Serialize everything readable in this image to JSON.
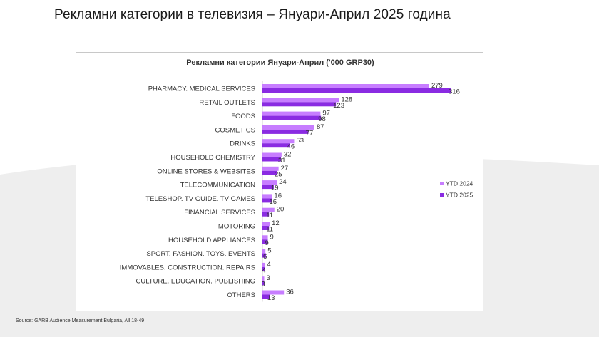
{
  "slide": {
    "title": "Рекламни категории в телевизия – Януари-Април 2025 година",
    "source": "Source: GARB Audience Measurement Bulgaria, All 18-49"
  },
  "colors": {
    "ytd2024": "#c77dff",
    "ytd2025": "#8a2be2",
    "background_shape": "#eeeeee"
  },
  "chart_data": {
    "type": "bar",
    "orientation": "horizontal",
    "title": "Рекламни категории Януари-Април ('000 GRP30)",
    "categories": [
      "PHARMACY. MEDICAL SERVICES",
      "RETAIL OUTLETS",
      "FOODS",
      "COSMETICS",
      "DRINKS",
      "HOUSEHOLD CHEMISTRY",
      "ONLINE STORES & WEBSITES",
      "TELECOMMUNICATION",
      "TELESHOP. TV GUIDE. TV GAMES",
      "FINANCIAL SERVICES",
      "MOTORING",
      "HOUSEHOLD APPLIANCES",
      "SPORT. FASHION. TOYS. EVENTS",
      "IMMOVABLES. CONSTRUCTION. REPAIRS",
      "CULTURE. EDUCATION. PUBLISHING",
      "OTHERS"
    ],
    "series": [
      {
        "name": "YTD 2024",
        "values": [
          279,
          128,
          97,
          87,
          53,
          32,
          27,
          24,
          16,
          20,
          12,
          9,
          5,
          4,
          3,
          36
        ]
      },
      {
        "name": "YTD 2025",
        "values": [
          316,
          123,
          98,
          77,
          46,
          31,
          25,
          19,
          16,
          11,
          11,
          9,
          6,
          4,
          3,
          13
        ]
      }
    ],
    "xlim": [
      0,
      330
    ],
    "grid": false,
    "legend_position": "right"
  }
}
